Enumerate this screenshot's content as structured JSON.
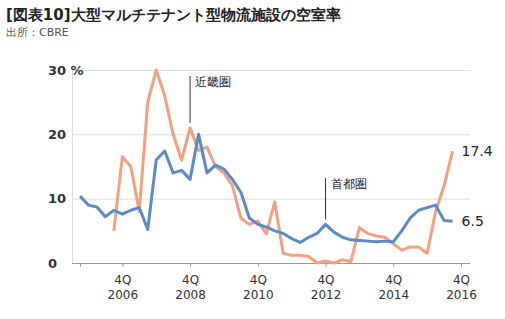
{
  "chart_data": {
    "type": "line",
    "title": "[図表10]大型マルチテナント型物流施設の空室率",
    "subtitle": "出所：CBRE",
    "categories": [
      null,
      null,
      null,
      null,
      null,
      "4Q\n2006",
      null,
      null,
      null,
      null,
      null,
      null,
      null,
      "4Q\n2008",
      null,
      null,
      null,
      null,
      null,
      null,
      null,
      "4Q\n2010",
      null,
      null,
      null,
      null,
      null,
      null,
      null,
      "4Q\n2012",
      null,
      null,
      null,
      null,
      null,
      null,
      null,
      "4Q\n2014",
      null,
      null,
      null,
      null,
      null,
      null,
      null,
      "4Q\n2016"
    ],
    "ylim": [
      0,
      30
    ],
    "yticks": [
      0,
      10,
      20,
      {
        "value": 30,
        "label": "30 %"
      }
    ],
    "grid": true,
    "series": [
      {
        "name": "近畿圏",
        "color": "#f4a07f",
        "values": [
          null,
          null,
          null,
          null,
          5.0,
          16.5,
          15.0,
          8.0,
          25.0,
          30.0,
          26.0,
          20.0,
          16.0,
          21.0,
          17.5,
          18.0,
          15.0,
          14.0,
          12.0,
          7.0,
          6.0,
          6.5,
          4.5,
          9.5,
          1.5,
          1.2,
          1.2,
          1.0,
          0.0,
          0.3,
          0.0,
          0.5,
          0.2,
          5.5,
          4.6,
          4.2,
          4.0,
          3.0,
          2.0,
          2.5,
          2.5,
          1.5,
          8.0,
          12.0,
          17.4,
          null
        ],
        "value_labels": [
          null,
          null,
          null,
          null,
          null,
          null,
          null,
          null,
          null,
          null,
          null,
          null,
          null,
          null,
          null,
          null,
          null,
          null,
          null,
          null,
          null,
          null,
          null,
          null,
          null,
          null,
          null,
          null,
          null,
          null,
          null,
          null,
          null,
          null,
          null,
          null,
          null,
          null,
          null,
          null,
          null,
          null,
          null,
          null,
          "17.4",
          null
        ]
      },
      {
        "name": "首都圏",
        "color": "#5b8ac4",
        "values": [
          10.4,
          9.0,
          8.7,
          7.2,
          8.2,
          7.6,
          8.2,
          8.6,
          5.2,
          16.0,
          17.4,
          14.0,
          14.4,
          13.0,
          20.0,
          14.0,
          15.2,
          14.6,
          13.0,
          11.0,
          7.0,
          6.0,
          5.6,
          5.0,
          4.6,
          3.8,
          3.2,
          4.0,
          4.6,
          6.0,
          4.8,
          4.0,
          3.6,
          3.5,
          3.4,
          3.3,
          3.4,
          3.3,
          5.0,
          7.0,
          8.2,
          8.6,
          9.0,
          6.6,
          6.5,
          null
        ],
        "value_labels": [
          null,
          null,
          null,
          null,
          null,
          null,
          null,
          null,
          null,
          null,
          null,
          null,
          null,
          null,
          null,
          null,
          null,
          null,
          null,
          null,
          null,
          null,
          null,
          null,
          null,
          null,
          null,
          null,
          null,
          null,
          null,
          null,
          null,
          null,
          null,
          null,
          null,
          null,
          null,
          null,
          null,
          null,
          null,
          null,
          "6.5",
          null
        ]
      }
    ]
  }
}
